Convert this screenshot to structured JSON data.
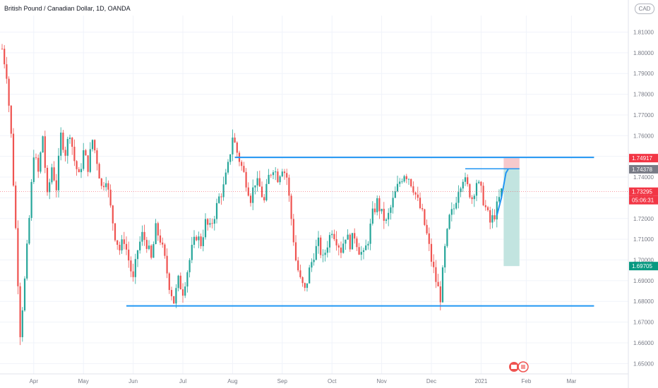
{
  "header": {
    "title": "British Pound / Canadian Dollar, 1D, OANDA",
    "currency_badge": "CAD"
  },
  "chart_data": {
    "type": "candlestick",
    "ylim": [
      1.645,
      1.818
    ],
    "y_ticks": [
      "1.81000",
      "1.80000",
      "1.79000",
      "1.78000",
      "1.77000",
      "1.76000",
      "1.75000",
      "1.74000",
      "1.73000",
      "1.72000",
      "1.71000",
      "1.70000",
      "1.69000",
      "1.68000",
      "1.67000",
      "1.66000",
      "1.65000"
    ],
    "y_tick_values": [
      1.81,
      1.8,
      1.79,
      1.78,
      1.77,
      1.76,
      1.75,
      1.74,
      1.73,
      1.72,
      1.71,
      1.7,
      1.69,
      1.68,
      1.67,
      1.66,
      1.65
    ],
    "x_ticks": [
      {
        "label": "Apr",
        "index": 14
      },
      {
        "label": "May",
        "index": 36
      },
      {
        "label": "Jun",
        "index": 58
      },
      {
        "label": "Jul",
        "index": 80
      },
      {
        "label": "Aug",
        "index": 102
      },
      {
        "label": "Sep",
        "index": 124
      },
      {
        "label": "Oct",
        "index": 146
      },
      {
        "label": "Nov",
        "index": 168
      },
      {
        "label": "Dec",
        "index": 190
      },
      {
        "label": "2021",
        "index": 212
      },
      {
        "label": "Feb",
        "index": 232
      },
      {
        "label": "Mar",
        "index": 252
      }
    ],
    "candles": {
      "count": 222,
      "keypoints": [
        [
          0,
          1.802
        ],
        [
          2,
          1.79
        ],
        [
          4,
          1.76
        ],
        [
          6,
          1.715
        ],
        [
          8,
          1.665
        ],
        [
          10,
          1.69
        ],
        [
          12,
          1.72
        ],
        [
          14,
          1.752
        ],
        [
          16,
          1.742
        ],
        [
          18,
          1.76
        ],
        [
          20,
          1.73
        ],
        [
          22,
          1.745
        ],
        [
          24,
          1.735
        ],
        [
          26,
          1.76
        ],
        [
          28,
          1.752
        ],
        [
          30,
          1.762
        ],
        [
          32,
          1.748
        ],
        [
          34,
          1.74
        ],
        [
          36,
          1.752
        ],
        [
          38,
          1.745
        ],
        [
          40,
          1.758
        ],
        [
          42,
          1.748
        ],
        [
          44,
          1.735
        ],
        [
          46,
          1.74
        ],
        [
          48,
          1.725
        ],
        [
          50,
          1.712
        ],
        [
          52,
          1.705
        ],
        [
          54,
          1.71
        ],
        [
          56,
          1.7
        ],
        [
          58,
          1.69
        ],
        [
          60,
          1.705
        ],
        [
          62,
          1.712
        ],
        [
          64,
          1.708
        ],
        [
          66,
          1.7
        ],
        [
          68,
          1.715
        ],
        [
          70,
          1.71
        ],
        [
          72,
          1.7
        ],
        [
          74,
          1.688
        ],
        [
          76,
          1.68
        ],
        [
          78,
          1.69
        ],
        [
          80,
          1.685
        ],
        [
          82,
          1.695
        ],
        [
          84,
          1.705
        ],
        [
          86,
          1.712
        ],
        [
          88,
          1.708
        ],
        [
          90,
          1.718
        ],
        [
          92,
          1.715
        ],
        [
          94,
          1.722
        ],
        [
          96,
          1.73
        ],
        [
          98,
          1.735
        ],
        [
          100,
          1.745
        ],
        [
          102,
          1.76
        ],
        [
          104,
          1.752
        ],
        [
          106,
          1.745
        ],
        [
          108,
          1.738
        ],
        [
          110,
          1.73
        ],
        [
          112,
          1.738
        ],
        [
          114,
          1.735
        ],
        [
          116,
          1.728
        ],
        [
          118,
          1.74
        ],
        [
          120,
          1.745
        ],
        [
          122,
          1.74
        ],
        [
          124,
          1.745
        ],
        [
          126,
          1.74
        ],
        [
          128,
          1.72
        ],
        [
          130,
          1.7
        ],
        [
          132,
          1.69
        ],
        [
          134,
          1.685
        ],
        [
          136,
          1.695
        ],
        [
          138,
          1.703
        ],
        [
          140,
          1.708
        ],
        [
          142,
          1.7
        ],
        [
          144,
          1.708
        ],
        [
          146,
          1.715
        ],
        [
          148,
          1.71
        ],
        [
          150,
          1.705
        ],
        [
          152,
          1.712
        ],
        [
          154,
          1.708
        ],
        [
          156,
          1.712
        ],
        [
          158,
          1.705
        ],
        [
          160,
          1.702
        ],
        [
          162,
          1.71
        ],
        [
          164,
          1.722
        ],
        [
          166,
          1.728
        ],
        [
          168,
          1.722
        ],
        [
          170,
          1.718
        ],
        [
          172,
          1.725
        ],
        [
          174,
          1.732
        ],
        [
          176,
          1.738
        ],
        [
          178,
          1.742
        ],
        [
          180,
          1.74
        ],
        [
          182,
          1.735
        ],
        [
          184,
          1.728
        ],
        [
          186,
          1.722
        ],
        [
          188,
          1.712
        ],
        [
          190,
          1.7
        ],
        [
          192,
          1.69
        ],
        [
          194,
          1.682
        ],
        [
          196,
          1.705
        ],
        [
          198,
          1.72
        ],
        [
          200,
          1.725
        ],
        [
          202,
          1.735
        ],
        [
          204,
          1.74
        ],
        [
          206,
          1.735
        ],
        [
          208,
          1.73
        ],
        [
          210,
          1.738
        ],
        [
          212,
          1.733
        ],
        [
          214,
          1.725
        ],
        [
          216,
          1.718
        ],
        [
          218,
          1.722
        ],
        [
          221,
          1.733
        ]
      ]
    },
    "horizontal_levels": [
      {
        "name": "resistance",
        "value": 1.7495,
        "from_index": 103,
        "to_index": 262
      },
      {
        "name": "support",
        "value": 1.6778,
        "from_index": 55,
        "to_index": 262
      }
    ],
    "short_position": {
      "entry": 1.74378,
      "stop": 1.74917,
      "target": 1.69705,
      "from_index": 222,
      "to_index": 229
    },
    "entry_line": {
      "value": 1.744,
      "from_index": 205,
      "to_index": 229
    },
    "projection_curve": [
      [
        219,
        1.7215
      ],
      [
        221,
        1.73
      ],
      [
        223,
        1.742
      ],
      [
        224,
        1.7438
      ]
    ],
    "current_price": 1.73295,
    "price_labels": [
      {
        "name": "stop-label",
        "value": 1.74917,
        "text": "1.74917",
        "color": "#f23645"
      },
      {
        "name": "entry-label",
        "value": 1.74378,
        "text": "1.74378",
        "color": "#787b86"
      },
      {
        "name": "current-label",
        "value": 1.73295,
        "text": "1.73295",
        "color": "#f23645"
      },
      {
        "name": "target-label",
        "value": 1.69705,
        "text": "1.69705",
        "color": "#089981"
      }
    ],
    "countdown": "05:06:31",
    "colors": {
      "up": "#26a69a",
      "down": "#ef5350",
      "line": "#2196f3",
      "stop_zone": "#f7c9cc",
      "target_zone": "#c2e4e0",
      "grid": "#f0f3fa",
      "axis_text": "#787b86",
      "current_line": "#f23645"
    }
  }
}
